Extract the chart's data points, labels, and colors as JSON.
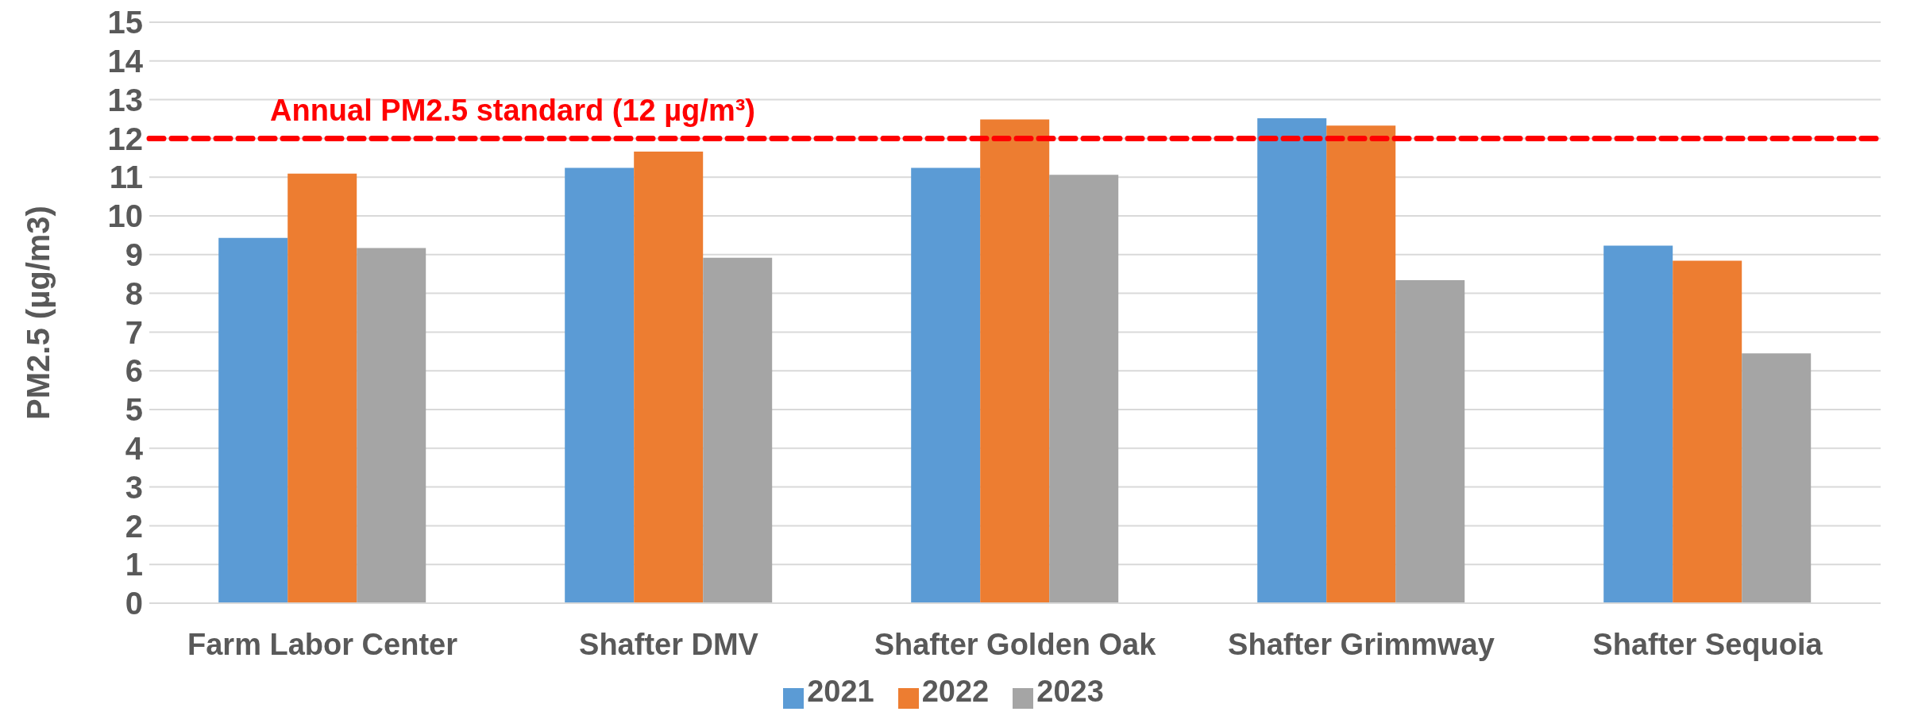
{
  "chart_data": {
    "type": "bar",
    "ylabel": "PM2.5 (µg/m3)",
    "categories": [
      "Farm Labor Center",
      "Shafter DMV",
      "Shafter Golden Oak",
      "Shafter Grimmway",
      "Shafter Sequoia"
    ],
    "series": [
      {
        "name": "2021",
        "color": "#5b9bd5",
        "values": [
          9.43,
          11.24,
          11.24,
          12.52,
          9.23
        ]
      },
      {
        "name": "2022",
        "color": "#ed7d31",
        "values": [
          11.09,
          11.66,
          12.49,
          12.33,
          8.84
        ]
      },
      {
        "name": "2023",
        "color": "#a5a5a5",
        "values": [
          9.17,
          8.92,
          11.06,
          8.34,
          6.45
        ]
      }
    ],
    "ylim": [
      0,
      15
    ],
    "yticks": [
      0,
      1,
      2,
      3,
      4,
      5,
      6,
      7,
      8,
      9,
      10,
      11,
      12,
      13,
      14,
      15
    ],
    "grid": "y",
    "legend": "bottom",
    "ref_lines": [
      {
        "axis": "y",
        "value": 12,
        "label": "Annual PM2.5 standard (12 µg/m³)",
        "color": "#ff0000",
        "line_style": "dashed"
      }
    ]
  }
}
